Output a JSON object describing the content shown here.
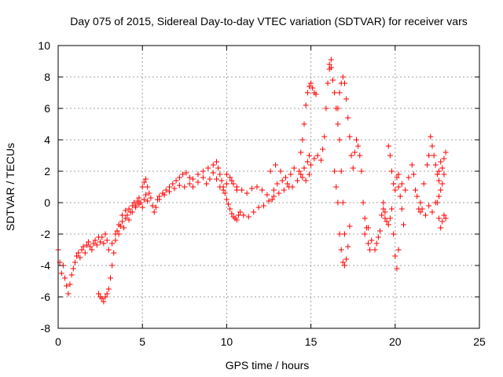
{
  "chart_data": {
    "type": "scatter",
    "title": "Day 075 of 2015, Sidereal Day-to-day VTEC variation (SDTVAR) for receiver vars",
    "xlabel": "GPS time / hours",
    "ylabel": "SDTVAR / TECUs",
    "xlim": [
      0,
      25
    ],
    "ylim": [
      -8,
      10
    ],
    "xticks": [
      "0",
      "5",
      "10",
      "15",
      "20",
      "25"
    ],
    "yticks": [
      "-8",
      "-6",
      "-4",
      "-2",
      "0",
      "2",
      "4",
      "6",
      "8",
      "10"
    ],
    "grid": true,
    "marker": "+",
    "color": "#ff0000",
    "series": [
      {
        "name": "SDTVAR",
        "points": [
          [
            0.0,
            -3.0
          ],
          [
            0.1,
            -3.8
          ],
          [
            0.2,
            -4.5
          ],
          [
            0.3,
            -4.0
          ],
          [
            0.4,
            -4.8
          ],
          [
            0.5,
            -5.3
          ],
          [
            0.6,
            -5.8
          ],
          [
            0.7,
            -5.2
          ],
          [
            0.8,
            -4.6
          ],
          [
            0.9,
            -4.2
          ],
          [
            1.0,
            -3.8
          ],
          [
            1.1,
            -3.4
          ],
          [
            1.2,
            -3.2
          ],
          [
            1.3,
            -3.5
          ],
          [
            1.4,
            -3.0
          ],
          [
            1.5,
            -2.8
          ],
          [
            1.6,
            -3.2
          ],
          [
            1.7,
            -2.7
          ],
          [
            1.8,
            -2.5
          ],
          [
            1.9,
            -2.8
          ],
          [
            2.0,
            -3.0
          ],
          [
            2.1,
            -2.6
          ],
          [
            2.2,
            -2.4
          ],
          [
            2.3,
            -2.7
          ],
          [
            2.4,
            -2.2
          ],
          [
            2.5,
            -2.5
          ],
          [
            2.6,
            -2.2
          ],
          [
            2.7,
            -2.6
          ],
          [
            2.8,
            -2.0
          ],
          [
            2.9,
            -2.4
          ],
          [
            2.4,
            -5.8
          ],
          [
            2.5,
            -6.0
          ],
          [
            2.6,
            -6.1
          ],
          [
            2.7,
            -6.3
          ],
          [
            2.8,
            -6.0
          ],
          [
            2.9,
            -5.8
          ],
          [
            3.0,
            -5.5
          ],
          [
            3.1,
            -4.8
          ],
          [
            3.2,
            -4.0
          ],
          [
            3.3,
            -3.2
          ],
          [
            3.4,
            -2.4
          ],
          [
            3.5,
            -1.8
          ],
          [
            3.6,
            -2.0
          ],
          [
            3.7,
            -1.5
          ],
          [
            3.8,
            -1.2
          ],
          [
            3.9,
            -1.6
          ],
          [
            4.0,
            -1.0
          ],
          [
            4.1,
            -0.8
          ],
          [
            4.2,
            -1.1
          ],
          [
            4.3,
            -0.6
          ],
          [
            3.0,
            -3.0
          ],
          [
            3.2,
            -2.6
          ],
          [
            3.4,
            -2.0
          ],
          [
            3.6,
            -1.4
          ],
          [
            3.8,
            -0.8
          ],
          [
            4.0,
            -0.5
          ],
          [
            4.2,
            -0.4
          ],
          [
            4.4,
            -0.6
          ],
          [
            4.6,
            -0.3
          ],
          [
            4.8,
            -0.1
          ],
          [
            4.4,
            -0.2
          ],
          [
            4.5,
            0.0
          ],
          [
            4.6,
            -0.2
          ],
          [
            4.7,
            0.1
          ],
          [
            4.8,
            0.3
          ],
          [
            4.9,
            0.0
          ],
          [
            5.0,
            -0.3
          ],
          [
            5.1,
            0.2
          ],
          [
            5.2,
            0.5
          ],
          [
            5.3,
            0.1
          ],
          [
            5.0,
            1.0
          ],
          [
            5.1,
            1.3
          ],
          [
            5.2,
            1.5
          ],
          [
            5.3,
            1.0
          ],
          [
            5.4,
            0.6
          ],
          [
            5.5,
            0.3
          ],
          [
            5.6,
            -0.2
          ],
          [
            5.7,
            -0.6
          ],
          [
            5.8,
            -0.3
          ],
          [
            5.9,
            0.2
          ],
          [
            6.0,
            0.4
          ],
          [
            6.2,
            0.6
          ],
          [
            6.4,
            0.8
          ],
          [
            6.6,
            1.0
          ],
          [
            6.8,
            1.2
          ],
          [
            7.0,
            1.4
          ],
          [
            7.2,
            1.6
          ],
          [
            7.4,
            1.8
          ],
          [
            7.6,
            1.9
          ],
          [
            7.8,
            1.6
          ],
          [
            6.0,
            0.2
          ],
          [
            6.3,
            0.5
          ],
          [
            6.6,
            0.7
          ],
          [
            6.9,
            0.9
          ],
          [
            7.2,
            1.1
          ],
          [
            7.5,
            1.0
          ],
          [
            7.8,
            1.2
          ],
          [
            8.0,
            1.0
          ],
          [
            8.3,
            1.3
          ],
          [
            8.6,
            1.6
          ],
          [
            8.0,
            1.5
          ],
          [
            8.3,
            1.8
          ],
          [
            8.6,
            2.0
          ],
          [
            8.9,
            2.2
          ],
          [
            9.2,
            2.4
          ],
          [
            9.4,
            2.6
          ],
          [
            9.5,
            2.2
          ],
          [
            9.6,
            1.8
          ],
          [
            9.7,
            1.4
          ],
          [
            9.8,
            1.0
          ],
          [
            8.8,
            1.2
          ],
          [
            9.0,
            1.5
          ],
          [
            9.2,
            1.9
          ],
          [
            9.4,
            1.5
          ],
          [
            9.6,
            1.0
          ],
          [
            9.8,
            0.8
          ],
          [
            10.0,
            1.2
          ],
          [
            10.2,
            1.6
          ],
          [
            10.4,
            1.2
          ],
          [
            10.6,
            0.8
          ],
          [
            9.9,
            0.6
          ],
          [
            10.0,
            0.2
          ],
          [
            10.1,
            -0.1
          ],
          [
            10.2,
            -0.4
          ],
          [
            10.3,
            -0.7
          ],
          [
            10.4,
            -0.9
          ],
          [
            10.5,
            -1.0
          ],
          [
            10.6,
            -1.1
          ],
          [
            10.7,
            -0.8
          ],
          [
            10.8,
            -0.6
          ],
          [
            10.0,
            1.8
          ],
          [
            10.3,
            1.4
          ],
          [
            10.6,
            1.0
          ],
          [
            10.9,
            0.8
          ],
          [
            11.2,
            0.6
          ],
          [
            11.5,
            0.9
          ],
          [
            11.8,
            1.0
          ],
          [
            12.1,
            0.8
          ],
          [
            12.4,
            0.5
          ],
          [
            12.7,
            0.2
          ],
          [
            11.0,
            -0.8
          ],
          [
            11.3,
            -0.9
          ],
          [
            11.6,
            -0.6
          ],
          [
            11.9,
            -0.3
          ],
          [
            12.2,
            -0.2
          ],
          [
            12.5,
            0.1
          ],
          [
            12.8,
            0.4
          ],
          [
            13.1,
            0.6
          ],
          [
            13.4,
            0.8
          ],
          [
            13.7,
            1.0
          ],
          [
            12.8,
            0.8
          ],
          [
            13.0,
            1.2
          ],
          [
            13.3,
            1.4
          ],
          [
            13.6,
            1.2
          ],
          [
            13.9,
            1.0
          ],
          [
            14.2,
            1.4
          ],
          [
            14.4,
            1.8
          ],
          [
            14.6,
            2.2
          ],
          [
            14.8,
            2.6
          ],
          [
            14.9,
            3.0
          ],
          [
            12.6,
            2.0
          ],
          [
            12.9,
            2.4
          ],
          [
            13.2,
            2.0
          ],
          [
            13.5,
            1.6
          ],
          [
            13.8,
            1.8
          ],
          [
            14.0,
            2.2
          ],
          [
            14.3,
            2.0
          ],
          [
            14.5,
            1.6
          ],
          [
            14.7,
            1.4
          ],
          [
            14.9,
            1.8
          ],
          [
            14.4,
            3.2
          ],
          [
            14.5,
            4.0
          ],
          [
            14.6,
            5.0
          ],
          [
            14.7,
            6.2
          ],
          [
            14.8,
            7.0
          ],
          [
            14.9,
            7.4
          ],
          [
            15.0,
            7.6
          ],
          [
            15.1,
            7.3
          ],
          [
            15.2,
            7.0
          ],
          [
            15.3,
            6.9
          ],
          [
            15.0,
            2.4
          ],
          [
            15.2,
            2.8
          ],
          [
            15.4,
            3.0
          ],
          [
            15.6,
            2.7
          ],
          [
            15.7,
            3.4
          ],
          [
            15.8,
            4.2
          ],
          [
            15.9,
            6.0
          ],
          [
            16.0,
            7.6
          ],
          [
            16.1,
            8.5
          ],
          [
            16.2,
            9.1
          ],
          [
            16.1,
            8.8
          ],
          [
            16.2,
            8.6
          ],
          [
            16.3,
            7.8
          ],
          [
            16.4,
            7.0
          ],
          [
            16.5,
            6.0
          ],
          [
            16.6,
            5.0
          ],
          [
            16.7,
            4.0
          ],
          [
            16.8,
            2.0
          ],
          [
            16.9,
            0.0
          ],
          [
            17.0,
            -2.0
          ],
          [
            16.4,
            2.0
          ],
          [
            16.5,
            1.0
          ],
          [
            16.6,
            0.0
          ],
          [
            16.7,
            -2.0
          ],
          [
            16.8,
            -3.0
          ],
          [
            16.9,
            -3.8
          ],
          [
            17.0,
            -4.0
          ],
          [
            17.1,
            -3.6
          ],
          [
            17.2,
            -2.8
          ],
          [
            17.3,
            -1.5
          ],
          [
            16.6,
            6.0
          ],
          [
            16.7,
            7.0
          ],
          [
            16.8,
            7.6
          ],
          [
            16.9,
            8.0
          ],
          [
            17.0,
            7.6
          ],
          [
            17.1,
            6.6
          ],
          [
            17.2,
            5.4
          ],
          [
            17.3,
            4.2
          ],
          [
            17.4,
            3.0
          ],
          [
            17.5,
            2.2
          ],
          [
            17.6,
            3.2
          ],
          [
            17.7,
            4.0
          ],
          [
            17.8,
            3.6
          ],
          [
            17.9,
            3.0
          ],
          [
            18.0,
            2.0
          ],
          [
            18.1,
            0.0
          ],
          [
            18.2,
            -1.0
          ],
          [
            18.3,
            -1.6
          ],
          [
            18.4,
            -2.6
          ],
          [
            18.5,
            -3.0
          ],
          [
            18.2,
            -2.0
          ],
          [
            18.4,
            -1.6
          ],
          [
            18.6,
            -2.4
          ],
          [
            18.8,
            -3.0
          ],
          [
            18.9,
            -2.6
          ],
          [
            19.0,
            -2.2
          ],
          [
            19.1,
            -1.8
          ],
          [
            19.2,
            -0.8
          ],
          [
            19.3,
            -0.4
          ],
          [
            19.4,
            -1.0
          ],
          [
            19.3,
            0.0
          ],
          [
            19.4,
            -0.6
          ],
          [
            19.5,
            -1.2
          ],
          [
            19.6,
            -1.4
          ],
          [
            19.7,
            -1.0
          ],
          [
            19.8,
            -0.4
          ],
          [
            19.9,
            -2.0
          ],
          [
            20.0,
            -3.4
          ],
          [
            20.1,
            -4.2
          ],
          [
            20.2,
            -3.0
          ],
          [
            19.6,
            3.6
          ],
          [
            19.7,
            3.0
          ],
          [
            19.8,
            2.0
          ],
          [
            19.9,
            1.2
          ],
          [
            20.0,
            0.8
          ],
          [
            20.1,
            1.6
          ],
          [
            20.2,
            1.0
          ],
          [
            20.3,
            0.4
          ],
          [
            20.4,
            -0.4
          ],
          [
            20.5,
            -1.4
          ],
          [
            20.2,
            1.8
          ],
          [
            20.4,
            1.2
          ],
          [
            20.6,
            0.8
          ],
          [
            20.8,
            1.6
          ],
          [
            21.0,
            2.4
          ],
          [
            21.1,
            1.8
          ],
          [
            21.2,
            0.8
          ],
          [
            21.3,
            0.4
          ],
          [
            21.4,
            -0.4
          ],
          [
            21.5,
            -0.6
          ],
          [
            21.5,
            0.0
          ],
          [
            21.7,
            1.2
          ],
          [
            21.9,
            2.4
          ],
          [
            22.0,
            3.0
          ],
          [
            22.1,
            4.2
          ],
          [
            22.2,
            3.6
          ],
          [
            22.3,
            3.0
          ],
          [
            22.4,
            2.4
          ],
          [
            22.5,
            1.8
          ],
          [
            22.6,
            1.4
          ],
          [
            21.6,
            -0.4
          ],
          [
            21.8,
            -0.8
          ],
          [
            22.0,
            -0.2
          ],
          [
            22.2,
            -0.6
          ],
          [
            22.4,
            0.0
          ],
          [
            22.6,
            -1.0
          ],
          [
            22.7,
            -1.6
          ],
          [
            22.8,
            -1.2
          ],
          [
            22.9,
            -0.8
          ],
          [
            23.0,
            -1.0
          ],
          [
            22.6,
            2.0
          ],
          [
            22.7,
            2.6
          ],
          [
            22.8,
            2.2
          ],
          [
            22.9,
            2.8
          ],
          [
            23.0,
            3.2
          ],
          [
            22.9,
            1.8
          ],
          [
            22.8,
            1.2
          ],
          [
            22.7,
            0.8
          ],
          [
            22.6,
            0.4
          ],
          [
            22.5,
            0.0
          ]
        ]
      }
    ]
  }
}
